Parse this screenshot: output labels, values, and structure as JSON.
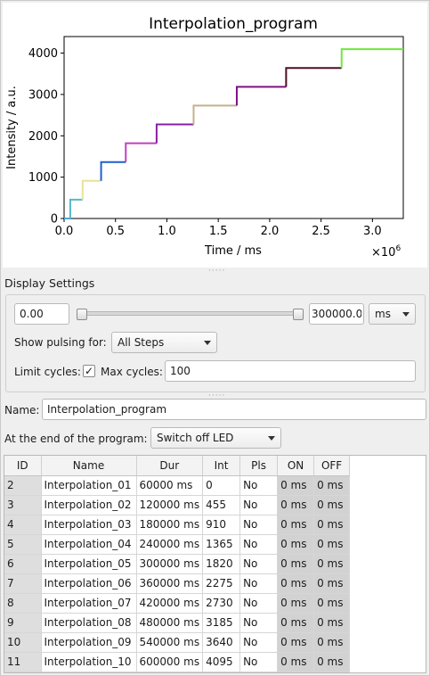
{
  "plot": {
    "title": "Interpolation_program",
    "xlabel": "Time / ms",
    "ylabel": "Intensity / a.u.",
    "x_exponent_base": "×10",
    "x_exponent_power": "6"
  },
  "chart_data": {
    "type": "line",
    "title": "Interpolation_program",
    "xlabel": "Time / ms",
    "ylabel": "Intensity / a.u.",
    "x_scale_note": "×10^6",
    "xlim": [
      0,
      3.3
    ],
    "ylim": [
      0,
      4400
    ],
    "x_ticks": [
      0.0,
      0.5,
      1.0,
      1.5,
      2.0,
      2.5,
      3.0
    ],
    "x_tick_labels": [
      "0.0",
      "0.5",
      "1.0",
      "1.5",
      "2.0",
      "2.5",
      "3.0"
    ],
    "y_ticks": [
      0,
      1000,
      2000,
      3000,
      4000
    ],
    "y_tick_labels": [
      "0",
      "1000",
      "2000",
      "3000",
      "4000"
    ],
    "grid": false,
    "series": [
      {
        "color": "#4aa8d8",
        "x": [
          0.0,
          0.06
        ],
        "y": [
          0,
          0
        ]
      },
      {
        "color": "#56b8c8",
        "x": [
          0.06,
          0.18
        ],
        "y": [
          455,
          455
        ]
      },
      {
        "color": "#e8e29a",
        "x": [
          0.18,
          0.36
        ],
        "y": [
          910,
          910
        ]
      },
      {
        "color": "#1f5fcf",
        "x": [
          0.36,
          0.6
        ],
        "y": [
          1365,
          1365
        ]
      },
      {
        "color": "#c040c0",
        "x": [
          0.6,
          0.9
        ],
        "y": [
          1820,
          1820
        ]
      },
      {
        "color": "#8a1fa6",
        "x": [
          0.9,
          1.26
        ],
        "y": [
          2275,
          2275
        ]
      },
      {
        "color": "#c4b28a",
        "x": [
          1.26,
          1.68
        ],
        "y": [
          2730,
          2730
        ]
      },
      {
        "color": "#7d1280",
        "x": [
          1.68,
          2.16
        ],
        "y": [
          3185,
          3185
        ]
      },
      {
        "color": "#4a1020",
        "x": [
          2.16,
          2.7
        ],
        "y": [
          3640,
          3640
        ]
      },
      {
        "color": "#6fe83a",
        "x": [
          2.7,
          3.3
        ],
        "y": [
          4095,
          4095
        ]
      }
    ]
  },
  "display_settings": {
    "label": "Display Settings",
    "min_value": "0.00",
    "max_value": "300000.00",
    "unit": "ms",
    "show_pulsing_label": "Show pulsing for:",
    "show_pulsing_value": "All Steps",
    "limit_cycles_label": "Limit cycles:",
    "limit_cycles_checked": "✓",
    "max_cycles_label": "Max cycles:",
    "max_cycles_value": "100"
  },
  "program": {
    "name_label": "Name:",
    "name_value": "Interpolation_program",
    "end_label": "At the end of the program:",
    "end_value": "Switch off LED"
  },
  "table": {
    "headers": [
      "ID",
      "Name",
      "Dur",
      "Int",
      "Pls",
      "ON",
      "OFF"
    ],
    "rows": [
      [
        "2",
        "Interpolation_01",
        "60000 ms",
        "0",
        "No",
        "0 ms",
        "0 ms"
      ],
      [
        "3",
        "Interpolation_02",
        "120000 ms",
        "455",
        "No",
        "0 ms",
        "0 ms"
      ],
      [
        "4",
        "Interpolation_03",
        "180000 ms",
        "910",
        "No",
        "0 ms",
        "0 ms"
      ],
      [
        "5",
        "Interpolation_04",
        "240000 ms",
        "1365",
        "No",
        "0 ms",
        "0 ms"
      ],
      [
        "6",
        "Interpolation_05",
        "300000 ms",
        "1820",
        "No",
        "0 ms",
        "0 ms"
      ],
      [
        "7",
        "Interpolation_06",
        "360000 ms",
        "2275",
        "No",
        "0 ms",
        "0 ms"
      ],
      [
        "8",
        "Interpolation_07",
        "420000 ms",
        "2730",
        "No",
        "0 ms",
        "0 ms"
      ],
      [
        "9",
        "Interpolation_08",
        "480000 ms",
        "3185",
        "No",
        "0 ms",
        "0 ms"
      ],
      [
        "10",
        "Interpolation_09",
        "540000 ms",
        "3640",
        "No",
        "0 ms",
        "0 ms"
      ],
      [
        "11",
        "Interpolation_10",
        "600000 ms",
        "4095",
        "No",
        "0 ms",
        "0 ms"
      ]
    ]
  }
}
